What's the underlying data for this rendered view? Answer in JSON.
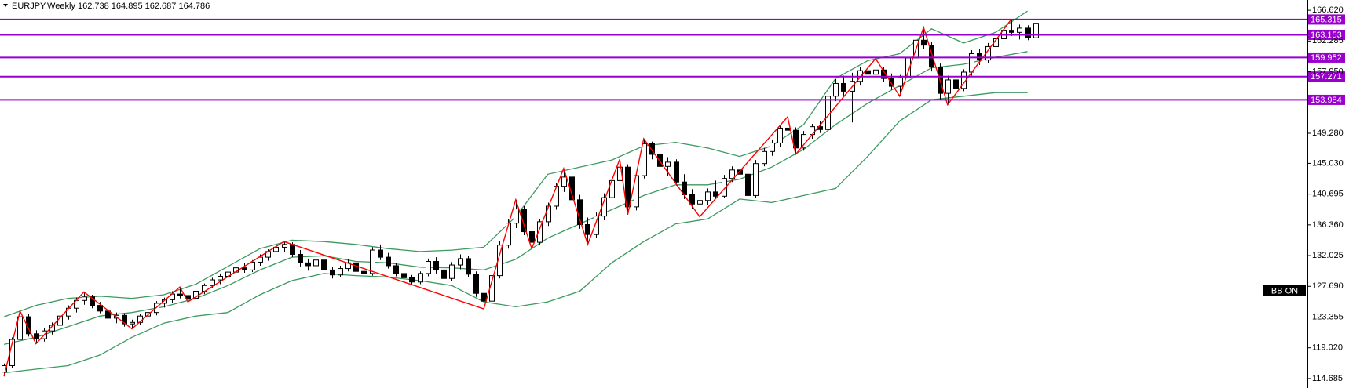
{
  "chart_data": {
    "type": "candlestick",
    "symbol": "EURJPY,Weekly",
    "ohlc": [
      162.738,
      164.895,
      162.687,
      164.786
    ],
    "indicator_label": "BB ON",
    "ylim": [
      113.35,
      168.07
    ],
    "xlim": [
      -0.5,
      162.9
    ],
    "yticks": [
      {
        "value": 166.62,
        "label": "166.620"
      },
      162.285,
      {
        "value": 157.95,
        "label": "157.950"
      },
      {
        "value": 149.28,
        "label": "149.280"
      },
      {
        "value": 145.03,
        "label": "145.030"
      },
      140.695,
      {
        "value": 136.36,
        "label": "136.360"
      },
      132.025,
      {
        "value": 127.69,
        "label": "127.690"
      },
      123.355,
      {
        "value": 119.02,
        "label": "119.020"
      },
      114.685
    ],
    "grid": false,
    "up_color": "#ffffff",
    "down_color": "#000000",
    "outline_color": "#000000",
    "open": [
      115.6,
      116.5,
      120.2,
      123.4,
      121.0,
      120.3,
      121.4,
      122.2,
      123.5,
      124.6,
      125.7,
      126.2,
      125.0,
      124.2,
      123.2,
      123.6,
      122.4,
      122.6,
      123.5,
      124.0,
      125.3,
      125.8,
      126.6,
      126.4,
      126.0,
      127.0,
      127.8,
      128.6,
      129.1,
      129.7,
      130.3,
      130.0,
      131.1,
      131.8,
      132.6,
      133.2,
      133.6,
      132.2,
      131.0,
      130.6,
      131.4,
      130.0,
      129.3,
      130.2,
      131.0,
      129.8,
      129.5,
      132.8,
      131.8,
      130.6,
      129.5,
      128.9,
      128.3,
      129.5,
      131.2,
      130.0,
      128.8,
      130.7,
      131.6,
      129.4,
      126.7,
      125.6,
      129.2,
      133.5,
      136.6,
      138.6,
      135.4,
      133.9,
      136.8,
      139.0,
      141.8,
      143.1,
      139.9,
      136.4,
      135.0,
      137.6,
      140.2,
      142.6,
      144.5,
      138.9,
      143.3,
      147.8,
      146.3,
      144.6,
      145.2,
      142.4,
      140.6,
      139.3,
      139.8,
      141.0,
      140.4,
      142.9,
      144.1,
      143.5,
      140.5,
      145.0,
      146.7,
      147.9,
      150.0,
      149.7,
      147.2,
      149.1,
      150.2,
      149.8,
      154.5,
      156.3,
      155.2,
      156.6,
      158.1,
      157.6,
      158.2,
      157.0,
      155.9,
      157.1,
      159.9,
      162.4,
      161.7,
      158.6,
      154.9,
      156.8,
      155.6,
      157.9,
      160.5,
      159.6,
      161.5,
      162.6,
      163.8,
      163.5,
      164.1,
      162.738
    ],
    "high": [
      116.8,
      120.5,
      124.2,
      123.8,
      121.5,
      121.8,
      122.6,
      123.9,
      125.0,
      126.1,
      126.9,
      126.5,
      125.5,
      124.9,
      124.0,
      123.9,
      123.0,
      123.8,
      124.3,
      125.6,
      126.1,
      127.0,
      127.6,
      126.8,
      127.2,
      128.1,
      128.9,
      129.5,
      130.0,
      130.6,
      131.0,
      131.4,
      132.2,
      132.9,
      133.5,
      134.0,
      133.9,
      132.8,
      131.6,
      131.8,
      131.7,
      130.4,
      130.6,
      131.5,
      131.3,
      130.3,
      133.2,
      133.6,
      132.4,
      131.0,
      130.1,
      129.3,
      129.8,
      131.6,
      131.8,
      130.7,
      131.1,
      132.2,
      132.0,
      129.8,
      127.3,
      129.8,
      134.1,
      137.2,
      139.9,
      139.0,
      136.0,
      137.2,
      139.5,
      142.3,
      144.3,
      143.6,
      140.6,
      137.4,
      138.1,
      140.8,
      143.2,
      145.6,
      144.9,
      143.8,
      148.5,
      148.1,
      147.2,
      145.9,
      145.6,
      143.5,
      141.4,
      140.4,
      141.5,
      142.6,
      143.4,
      144.6,
      144.9,
      144.2,
      145.5,
      147.2,
      148.4,
      150.5,
      151.6,
      150.1,
      149.6,
      150.6,
      151.0,
      155.0,
      156.9,
      157.4,
      157.8,
      158.6,
      159.2,
      159.8,
      158.6,
      157.7,
      157.5,
      160.4,
      163.0,
      164.2,
      162.2,
      159.1,
      157.4,
      157.6,
      158.3,
      161.0,
      161.2,
      162.0,
      163.1,
      164.2,
      165.4,
      164.6,
      164.5,
      164.895
    ],
    "low": [
      115.0,
      116.2,
      119.8,
      120.6,
      119.6,
      119.9,
      120.9,
      121.8,
      123.0,
      124.0,
      125.1,
      124.6,
      123.9,
      122.8,
      122.5,
      122.0,
      121.7,
      122.2,
      122.9,
      123.6,
      124.7,
      125.3,
      126.0,
      125.5,
      125.7,
      126.6,
      127.4,
      128.0,
      128.5,
      129.2,
      129.6,
      129.7,
      130.6,
      131.3,
      132.0,
      132.5,
      131.8,
      130.5,
      129.9,
      130.2,
      129.6,
      128.8,
      129.0,
      129.8,
      129.4,
      128.9,
      129.2,
      131.4,
      130.2,
      129.1,
      128.4,
      127.9,
      128.0,
      129.1,
      129.5,
      128.4,
      128.5,
      130.1,
      129.0,
      126.2,
      124.5,
      125.2,
      128.8,
      133.0,
      135.9,
      134.9,
      133.0,
      133.5,
      136.2,
      138.5,
      141.0,
      139.4,
      135.8,
      133.6,
      134.5,
      137.0,
      139.6,
      142.0,
      137.8,
      138.4,
      142.9,
      145.6,
      144.1,
      143.2,
      141.9,
      140.0,
      138.6,
      137.5,
      139.2,
      140.0,
      140.1,
      142.4,
      142.9,
      139.6,
      140.2,
      144.6,
      146.1,
      147.4,
      149.2,
      146.3,
      146.8,
      148.5,
      149.3,
      149.5,
      153.8,
      154.6,
      150.8,
      156.0,
      157.0,
      157.2,
      156.5,
      155.4,
      154.5,
      156.7,
      159.3,
      161.2,
      158.0,
      154.0,
      153.3,
      155.0,
      155.2,
      157.4,
      158.9,
      159.2,
      160.9,
      161.8,
      163.0,
      162.5,
      162.4,
      162.687
    ],
    "close": [
      116.5,
      120.2,
      123.4,
      121.0,
      120.3,
      121.4,
      122.2,
      123.5,
      124.6,
      125.7,
      126.2,
      125.0,
      124.2,
      123.2,
      123.6,
      122.4,
      122.6,
      123.5,
      124.0,
      125.3,
      125.8,
      126.6,
      126.4,
      126.0,
      127.0,
      127.8,
      128.6,
      129.1,
      129.7,
      130.3,
      130.0,
      131.1,
      131.8,
      132.6,
      133.2,
      133.6,
      132.2,
      131.0,
      130.6,
      131.4,
      130.0,
      129.3,
      130.2,
      131.0,
      129.8,
      129.5,
      132.8,
      131.8,
      130.6,
      129.5,
      128.9,
      128.3,
      129.5,
      131.2,
      130.0,
      128.8,
      130.7,
      131.6,
      129.4,
      126.7,
      125.6,
      129.2,
      133.5,
      136.6,
      138.6,
      135.4,
      133.9,
      136.8,
      139.0,
      141.8,
      143.1,
      139.9,
      136.4,
      135.0,
      137.6,
      140.2,
      142.6,
      144.5,
      138.9,
      143.3,
      147.8,
      146.3,
      144.6,
      145.2,
      142.4,
      140.6,
      139.3,
      139.8,
      141.0,
      140.4,
      142.9,
      144.1,
      143.5,
      140.5,
      145.0,
      146.7,
      147.9,
      150.0,
      149.7,
      147.2,
      149.1,
      150.2,
      149.8,
      154.5,
      156.3,
      155.2,
      156.6,
      158.1,
      157.6,
      158.2,
      157.0,
      155.9,
      157.1,
      159.9,
      162.4,
      161.7,
      158.6,
      154.9,
      156.8,
      155.6,
      157.9,
      160.5,
      159.6,
      161.5,
      162.6,
      163.8,
      163.5,
      164.1,
      162.738,
      164.786
    ],
    "bollinger": {
      "color": "#3c9a5f",
      "x": [
        0,
        4,
        8,
        12,
        16,
        20,
        24,
        28,
        32,
        36,
        40,
        44,
        48,
        52,
        56,
        60,
        64,
        68,
        72,
        76,
        80,
        84,
        88,
        92,
        96,
        100,
        104,
        108,
        112,
        116,
        120,
        124,
        128
      ],
      "upper": [
        123.4,
        125.0,
        126.0,
        126.3,
        126.0,
        126.5,
        128.0,
        130.5,
        133.0,
        134.2,
        134.0,
        133.6,
        133.0,
        132.6,
        132.8,
        133.2,
        137.5,
        143.5,
        144.5,
        145.5,
        147.5,
        148.0,
        147.2,
        146.0,
        147.5,
        150.5,
        157.0,
        159.5,
        160.5,
        164.0,
        162.0,
        163.5,
        166.5
      ],
      "middle": [
        119.5,
        120.5,
        122.0,
        123.5,
        124.0,
        124.8,
        126.0,
        127.8,
        130.0,
        131.8,
        132.0,
        131.2,
        131.0,
        130.4,
        130.3,
        130.0,
        131.5,
        134.5,
        136.5,
        138.5,
        140.5,
        142.0,
        142.0,
        142.8,
        144.5,
        147.0,
        150.5,
        153.5,
        156.0,
        158.5,
        159.0,
        160.0,
        160.8
      ],
      "lower": [
        115.5,
        116.0,
        116.5,
        118.0,
        120.5,
        122.5,
        123.5,
        124.0,
        126.5,
        128.5,
        129.5,
        129.2,
        129.0,
        128.5,
        127.8,
        125.5,
        124.8,
        125.5,
        127.0,
        131.0,
        134.0,
        136.5,
        137.2,
        140.0,
        139.5,
        140.5,
        141.5,
        146.0,
        151.0,
        154.0,
        154.5,
        155.0,
        155.0
      ]
    },
    "zigzag": {
      "color": "#ff0000",
      "x": [
        0,
        2,
        4,
        10,
        16,
        22,
        23,
        35,
        60,
        64,
        66,
        70,
        73,
        77,
        78,
        80,
        87,
        98,
        99,
        109,
        112,
        115,
        118,
        126
      ],
      "values": [
        115.0,
        124.2,
        119.6,
        126.9,
        121.7,
        127.6,
        125.5,
        134.0,
        124.5,
        139.9,
        133.0,
        144.3,
        133.6,
        145.6,
        137.8,
        148.5,
        137.5,
        151.6,
        146.3,
        159.8,
        154.5,
        164.2,
        153.3,
        165.4
      ]
    },
    "levels": {
      "color": "#9900cc",
      "values": [
        165.315,
        163.153,
        159.952,
        157.271,
        153.984
      ]
    }
  }
}
